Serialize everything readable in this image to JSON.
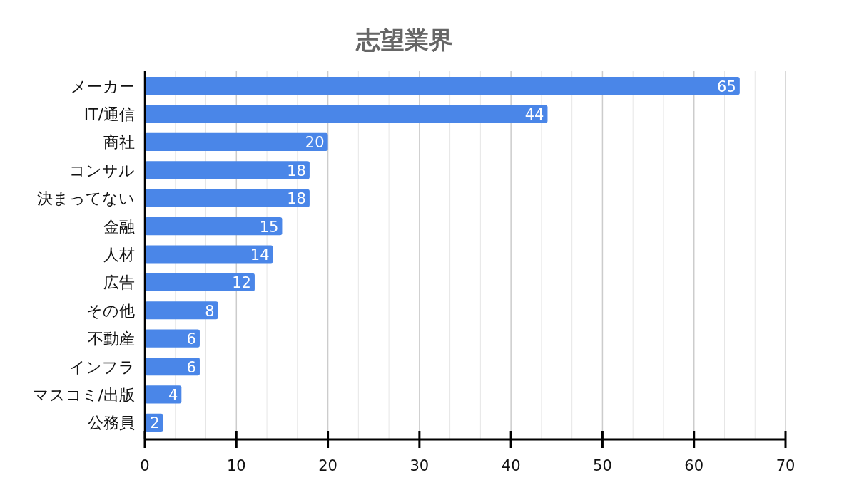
{
  "chart_data": {
    "type": "bar",
    "orientation": "horizontal",
    "title": "志望業界",
    "categories": [
      "メーカー",
      "IT/通信",
      "商社",
      "コンサル",
      "決まってない",
      "金融",
      "人材",
      "広告",
      "その他",
      "不動産",
      "インフラ",
      "マスコミ/出版",
      "公務員"
    ],
    "values": [
      65,
      44,
      20,
      18,
      18,
      15,
      14,
      12,
      8,
      6,
      6,
      4,
      2
    ],
    "color": "#4a86e8",
    "xlim": [
      0,
      70
    ],
    "xticks": [
      0,
      10,
      20,
      30,
      40,
      50,
      60,
      70
    ],
    "grid": "x",
    "data_labels": true
  }
}
